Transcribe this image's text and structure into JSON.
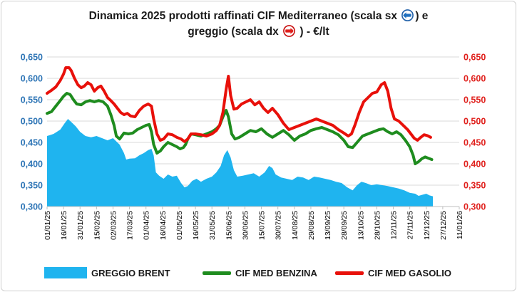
{
  "chart_title": {
    "line1_before": "Dinamica 2025 prodotti raffinati CIF Mediterraneo (scala sx",
    "line1_after": ") e",
    "line2_before": "greggio (scala dx",
    "line2_after": ") - €/lt",
    "left_arrow_icon": "left-arrow-circle-icon",
    "right_arrow_icon": "right-arrow-circle-icon"
  },
  "chart_data": {
    "type": "area+line",
    "title": "Dinamica 2025 prodotti raffinati CIF Mediterraneo (scala sx) e greggio (scala dx) - €/lt",
    "ylim_left": [
      0.3,
      0.65
    ],
    "ylim_right": [
      0.3,
      0.65
    ],
    "yticks_left": [
      "0,300",
      "0,350",
      "0,400",
      "0,450",
      "0,500",
      "0,550",
      "0,600",
      "0,650"
    ],
    "yticks_right": [
      "0,300",
      "0,350",
      "0,400",
      "0,450",
      "0,500",
      "0,550",
      "0,600",
      "0,650"
    ],
    "xticks": [
      "01/01/25",
      "16/01/25",
      "31/01/25",
      "15/02/25",
      "02/03/25",
      "17/03/25",
      "01/04/25",
      "16/04/25",
      "01/05/25",
      "16/05/25",
      "31/05/25",
      "15/06/25",
      "30/06/25",
      "15/07/25",
      "30/07/25",
      "14/08/25",
      "29/08/25",
      "13/09/25",
      "28/09/25",
      "13/10/25",
      "28/10/25",
      "12/11/25",
      "27/11/25",
      "12/12/25",
      "27/12/25",
      "11/01/26"
    ],
    "grid": true,
    "legend_position": "bottom",
    "colors": {
      "brent": "#1fb4ef",
      "benzina": "#1e8c1e",
      "gasolio": "#e8100a",
      "left_axis": "#2e75b6",
      "right_axis": "#e0201c"
    },
    "series": [
      {
        "name": "GREGGIO BRENT",
        "type": "area",
        "axis": "right",
        "points": [
          [
            0,
            0.465
          ],
          [
            6,
            0.47
          ],
          [
            12,
            0.48
          ],
          [
            16,
            0.495
          ],
          [
            19,
            0.505
          ],
          [
            22,
            0.498
          ],
          [
            26,
            0.488
          ],
          [
            30,
            0.475
          ],
          [
            35,
            0.465
          ],
          [
            40,
            0.462
          ],
          [
            45,
            0.465
          ],
          [
            50,
            0.46
          ],
          [
            55,
            0.455
          ],
          [
            60,
            0.46
          ],
          [
            66,
            0.445
          ],
          [
            70,
            0.425
          ],
          [
            72,
            0.41
          ],
          [
            75,
            0.412
          ],
          [
            80,
            0.413
          ],
          [
            84,
            0.42
          ],
          [
            88,
            0.425
          ],
          [
            92,
            0.432
          ],
          [
            95,
            0.435
          ],
          [
            97,
            0.42
          ],
          [
            99,
            0.38
          ],
          [
            102,
            0.372
          ],
          [
            106,
            0.365
          ],
          [
            110,
            0.375
          ],
          [
            114,
            0.37
          ],
          [
            118,
            0.372
          ],
          [
            122,
            0.355
          ],
          [
            125,
            0.345
          ],
          [
            128,
            0.348
          ],
          [
            132,
            0.36
          ],
          [
            136,
            0.365
          ],
          [
            140,
            0.358
          ],
          [
            145,
            0.365
          ],
          [
            150,
            0.37
          ],
          [
            154,
            0.38
          ],
          [
            158,
            0.395
          ],
          [
            161,
            0.42
          ],
          [
            164,
            0.432
          ],
          [
            167,
            0.415
          ],
          [
            170,
            0.385
          ],
          [
            173,
            0.37
          ],
          [
            178,
            0.372
          ],
          [
            183,
            0.375
          ],
          [
            188,
            0.378
          ],
          [
            193,
            0.37
          ],
          [
            198,
            0.38
          ],
          [
            202,
            0.395
          ],
          [
            205,
            0.39
          ],
          [
            208,
            0.375
          ],
          [
            213,
            0.368
          ],
          [
            218,
            0.365
          ],
          [
            223,
            0.362
          ],
          [
            228,
            0.37
          ],
          [
            233,
            0.368
          ],
          [
            238,
            0.362
          ],
          [
            243,
            0.37
          ],
          [
            248,
            0.368
          ],
          [
            253,
            0.365
          ],
          [
            258,
            0.362
          ],
          [
            263,
            0.358
          ],
          [
            268,
            0.355
          ],
          [
            273,
            0.345
          ],
          [
            278,
            0.338
          ],
          [
            282,
            0.35
          ],
          [
            286,
            0.358
          ],
          [
            290,
            0.355
          ],
          [
            295,
            0.35
          ],
          [
            300,
            0.352
          ],
          [
            305,
            0.35
          ],
          [
            310,
            0.348
          ],
          [
            315,
            0.345
          ],
          [
            320,
            0.342
          ],
          [
            325,
            0.338
          ],
          [
            330,
            0.332
          ],
          [
            335,
            0.33
          ],
          [
            338,
            0.325
          ],
          [
            342,
            0.328
          ],
          [
            345,
            0.33
          ],
          [
            348,
            0.326
          ],
          [
            351,
            0.324
          ]
        ]
      },
      {
        "name": "CIF MED BENZINA",
        "type": "line",
        "axis": "left",
        "points": [
          [
            0,
            0.518
          ],
          [
            4,
            0.522
          ],
          [
            8,
            0.535
          ],
          [
            12,
            0.548
          ],
          [
            15,
            0.558
          ],
          [
            18,
            0.565
          ],
          [
            21,
            0.562
          ],
          [
            24,
            0.55
          ],
          [
            27,
            0.54
          ],
          [
            31,
            0.538
          ],
          [
            35,
            0.545
          ],
          [
            39,
            0.548
          ],
          [
            43,
            0.545
          ],
          [
            47,
            0.548
          ],
          [
            51,
            0.545
          ],
          [
            55,
            0.535
          ],
          [
            58,
            0.515
          ],
          [
            61,
            0.49
          ],
          [
            63,
            0.465
          ],
          [
            66,
            0.458
          ],
          [
            70,
            0.472
          ],
          [
            74,
            0.47
          ],
          [
            78,
            0.472
          ],
          [
            82,
            0.48
          ],
          [
            86,
            0.485
          ],
          [
            90,
            0.49
          ],
          [
            93,
            0.492
          ],
          [
            95,
            0.475
          ],
          [
            97,
            0.445
          ],
          [
            100,
            0.425
          ],
          [
            103,
            0.43
          ],
          [
            106,
            0.44
          ],
          [
            110,
            0.45
          ],
          [
            114,
            0.445
          ],
          [
            118,
            0.44
          ],
          [
            121,
            0.435
          ],
          [
            124,
            0.438
          ],
          [
            126,
            0.445
          ],
          [
            128,
            0.458
          ],
          [
            131,
            0.47
          ],
          [
            135,
            0.468
          ],
          [
            140,
            0.465
          ],
          [
            145,
            0.47
          ],
          [
            150,
            0.475
          ],
          [
            154,
            0.482
          ],
          [
            157,
            0.49
          ],
          [
            160,
            0.51
          ],
          [
            163,
            0.525
          ],
          [
            165,
            0.51
          ],
          [
            168,
            0.47
          ],
          [
            171,
            0.458
          ],
          [
            175,
            0.462
          ],
          [
            180,
            0.47
          ],
          [
            185,
            0.478
          ],
          [
            190,
            0.475
          ],
          [
            195,
            0.482
          ],
          [
            200,
            0.47
          ],
          [
            205,
            0.462
          ],
          [
            210,
            0.47
          ],
          [
            215,
            0.478
          ],
          [
            220,
            0.468
          ],
          [
            225,
            0.455
          ],
          [
            230,
            0.465
          ],
          [
            235,
            0.47
          ],
          [
            240,
            0.478
          ],
          [
            245,
            0.482
          ],
          [
            250,
            0.485
          ],
          [
            255,
            0.48
          ],
          [
            260,
            0.475
          ],
          [
            265,
            0.468
          ],
          [
            270,
            0.455
          ],
          [
            274,
            0.44
          ],
          [
            278,
            0.438
          ],
          [
            282,
            0.45
          ],
          [
            287,
            0.465
          ],
          [
            292,
            0.47
          ],
          [
            297,
            0.475
          ],
          [
            302,
            0.48
          ],
          [
            306,
            0.482
          ],
          [
            310,
            0.475
          ],
          [
            314,
            0.47
          ],
          [
            318,
            0.475
          ],
          [
            322,
            0.468
          ],
          [
            326,
            0.455
          ],
          [
            330,
            0.44
          ],
          [
            333,
            0.42
          ],
          [
            335,
            0.4
          ],
          [
            338,
            0.405
          ],
          [
            341,
            0.412
          ],
          [
            344,
            0.416
          ],
          [
            347,
            0.413
          ],
          [
            350,
            0.41
          ]
        ]
      },
      {
        "name": "CIF MED GASOLIO",
        "type": "line",
        "axis": "left",
        "points": [
          [
            0,
            0.565
          ],
          [
            4,
            0.572
          ],
          [
            8,
            0.58
          ],
          [
            12,
            0.595
          ],
          [
            15,
            0.61
          ],
          [
            17,
            0.625
          ],
          [
            20,
            0.625
          ],
          [
            22,
            0.618
          ],
          [
            25,
            0.6
          ],
          [
            28,
            0.585
          ],
          [
            31,
            0.578
          ],
          [
            34,
            0.582
          ],
          [
            37,
            0.59
          ],
          [
            40,
            0.585
          ],
          [
            43,
            0.57
          ],
          [
            46,
            0.578
          ],
          [
            49,
            0.582
          ],
          [
            52,
            0.57
          ],
          [
            55,
            0.555
          ],
          [
            58,
            0.548
          ],
          [
            61,
            0.54
          ],
          [
            64,
            0.53
          ],
          [
            67,
            0.52
          ],
          [
            70,
            0.515
          ],
          [
            73,
            0.518
          ],
          [
            76,
            0.512
          ],
          [
            80,
            0.51
          ],
          [
            84,
            0.525
          ],
          [
            88,
            0.535
          ],
          [
            92,
            0.54
          ],
          [
            95,
            0.535
          ],
          [
            97,
            0.505
          ],
          [
            100,
            0.47
          ],
          [
            103,
            0.455
          ],
          [
            106,
            0.458
          ],
          [
            110,
            0.47
          ],
          [
            114,
            0.468
          ],
          [
            118,
            0.462
          ],
          [
            122,
            0.458
          ],
          [
            125,
            0.452
          ],
          [
            128,
            0.458
          ],
          [
            131,
            0.47
          ],
          [
            135,
            0.47
          ],
          [
            140,
            0.468
          ],
          [
            145,
            0.465
          ],
          [
            150,
            0.47
          ],
          [
            154,
            0.478
          ],
          [
            157,
            0.49
          ],
          [
            160,
            0.52
          ],
          [
            163,
            0.575
          ],
          [
            165,
            0.605
          ],
          [
            167,
            0.56
          ],
          [
            170,
            0.528
          ],
          [
            173,
            0.53
          ],
          [
            177,
            0.54
          ],
          [
            181,
            0.545
          ],
          [
            185,
            0.55
          ],
          [
            189,
            0.538
          ],
          [
            193,
            0.545
          ],
          [
            197,
            0.53
          ],
          [
            201,
            0.52
          ],
          [
            205,
            0.53
          ],
          [
            210,
            0.515
          ],
          [
            215,
            0.495
          ],
          [
            220,
            0.48
          ],
          [
            225,
            0.485
          ],
          [
            230,
            0.49
          ],
          [
            235,
            0.495
          ],
          [
            240,
            0.5
          ],
          [
            245,
            0.505
          ],
          [
            250,
            0.5
          ],
          [
            255,
            0.495
          ],
          [
            260,
            0.49
          ],
          [
            265,
            0.48
          ],
          [
            270,
            0.472
          ],
          [
            274,
            0.465
          ],
          [
            277,
            0.47
          ],
          [
            280,
            0.49
          ],
          [
            284,
            0.52
          ],
          [
            288,
            0.545
          ],
          [
            292,
            0.555
          ],
          [
            296,
            0.565
          ],
          [
            300,
            0.568
          ],
          [
            304,
            0.585
          ],
          [
            307,
            0.59
          ],
          [
            310,
            0.57
          ],
          [
            313,
            0.53
          ],
          [
            316,
            0.505
          ],
          [
            320,
            0.5
          ],
          [
            324,
            0.49
          ],
          [
            328,
            0.48
          ],
          [
            331,
            0.47
          ],
          [
            334,
            0.46
          ],
          [
            337,
            0.455
          ],
          [
            340,
            0.462
          ],
          [
            343,
            0.468
          ],
          [
            346,
            0.466
          ],
          [
            349,
            0.462
          ]
        ]
      }
    ]
  },
  "legend": {
    "brent": "GREGGIO BRENT",
    "benzina": "CIF MED BENZINA",
    "gasolio": "CIF MED GASOLIO"
  }
}
